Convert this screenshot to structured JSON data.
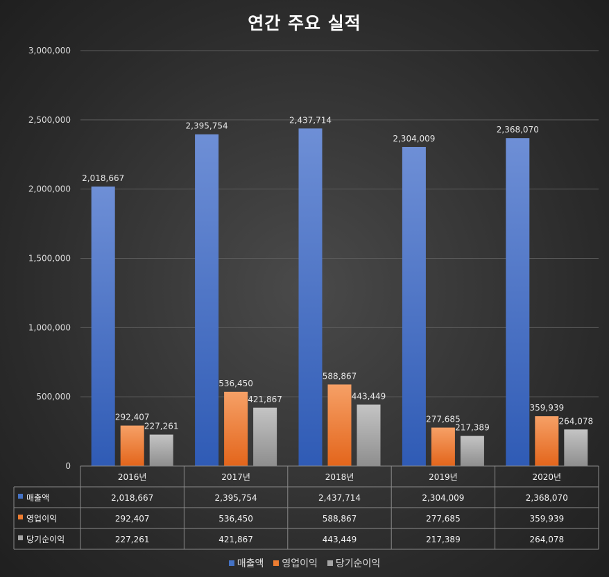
{
  "chart_data": {
    "type": "bar",
    "title": "연간 주요 실적",
    "categories": [
      "2016년",
      "2017년",
      "2018년",
      "2019년",
      "2020년"
    ],
    "series": [
      {
        "name": "매출액",
        "color": "#4472c4",
        "values": [
          2018667,
          2395754,
          2437714,
          2304009,
          2368070
        ]
      },
      {
        "name": "영업이익",
        "color": "#ed7d31",
        "values": [
          292407,
          536450,
          588867,
          277685,
          359939
        ]
      },
      {
        "name": "당기순이익",
        "color": "#a5a5a5",
        "values": [
          227261,
          421867,
          443449,
          217389,
          264078
        ]
      }
    ],
    "ylim": [
      0,
      3000000
    ],
    "yticks": [
      0,
      500000,
      1000000,
      1500000,
      2000000,
      2500000,
      3000000
    ],
    "ytick_labels": [
      "0",
      "500,000",
      "1,000,000",
      "1,500,000",
      "2,000,000",
      "2,500,000",
      "3,000,000"
    ],
    "value_labels": [
      [
        "2,018,667",
        "2,395,754",
        "2,437,714",
        "2,304,009",
        "2,368,070"
      ],
      [
        "292,407",
        "536,450",
        "588,867",
        "277,685",
        "359,939"
      ],
      [
        "227,261",
        "421,867",
        "443,449",
        "217,389",
        "264,078"
      ]
    ],
    "grid": true,
    "data_table": true,
    "legend": "bottom"
  }
}
